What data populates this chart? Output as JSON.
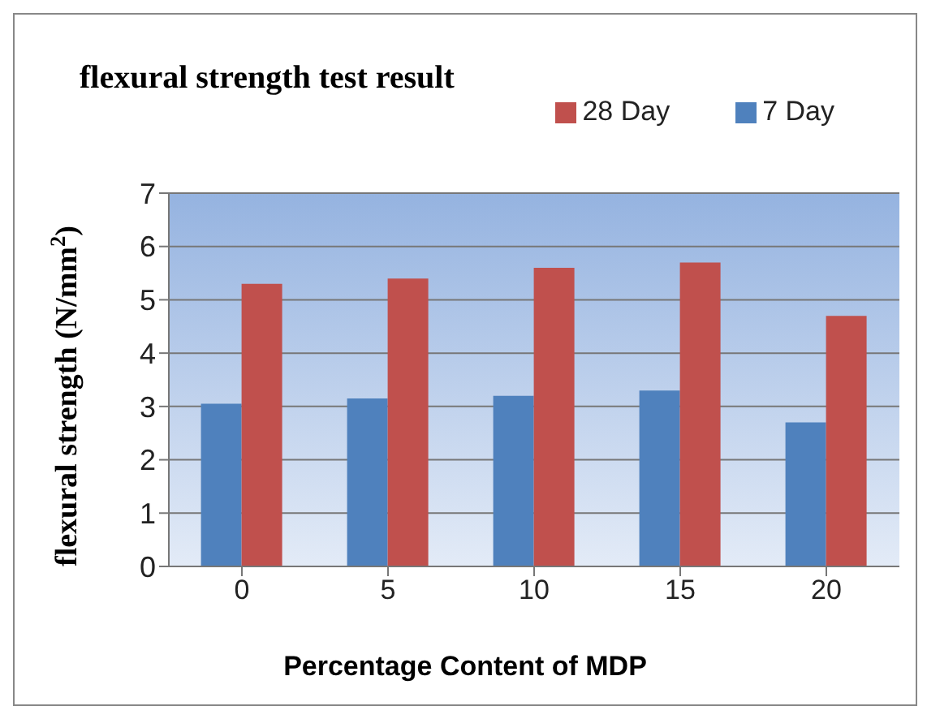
{
  "chart_data": {
    "type": "bar",
    "title": "flexural strength test result",
    "xlabel": "Percentage Content of MDP",
    "ylabel": "flexural strength (N/mm$^{2}$)",
    "categories": [
      "0",
      "5",
      "10",
      "15",
      "20"
    ],
    "series": [
      {
        "name": "7 Day",
        "color": "#4f81bd",
        "values": [
          3.05,
          3.15,
          3.2,
          3.3,
          2.7
        ]
      },
      {
        "name": "28 Day",
        "color": "#c0504d",
        "values": [
          5.3,
          5.4,
          5.6,
          5.7,
          4.7
        ]
      }
    ],
    "ylim": [
      0,
      7
    ],
    "yticks": [
      0,
      1,
      2,
      3,
      4,
      5,
      6,
      7
    ],
    "grid": "y",
    "legend": "top right"
  }
}
